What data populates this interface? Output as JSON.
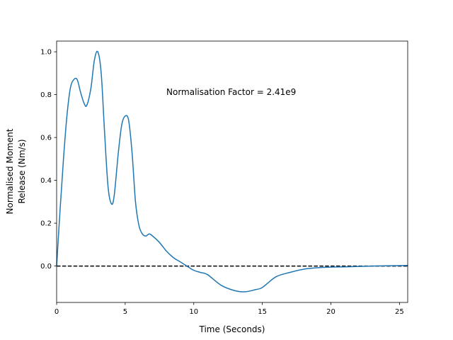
{
  "chart_data": {
    "type": "line",
    "title": "",
    "xlabel": "Time (Seconds)",
    "ylabel_lines": [
      "Normalised Moment",
      "Release (Nm/s)"
    ],
    "annotation": "Normalisation Factor = 2.41e9",
    "xlim": [
      0,
      25.6
    ],
    "ylim": [
      -0.17,
      1.05
    ],
    "x_ticks": [
      0,
      5,
      10,
      15,
      20,
      25
    ],
    "y_ticks": [
      0.0,
      0.2,
      0.4,
      0.6,
      0.8,
      1.0
    ],
    "x_tick_labels": [
      "0",
      "5",
      "10",
      "15",
      "20",
      "25"
    ],
    "y_tick_labels": [
      "0.0",
      "0.2",
      "0.4",
      "0.6",
      "0.8",
      "1.0"
    ],
    "grid": false,
    "line_color": "#1f77b4",
    "zero_line": {
      "y": 0,
      "style": "dashed",
      "color": "#000000"
    },
    "series": [
      {
        "x": [
          0,
          0.25,
          0.5,
          0.75,
          1.0,
          1.25,
          1.5,
          1.75,
          2.0,
          2.2,
          2.5,
          2.75,
          3.0,
          3.25,
          3.5,
          3.75,
          4.0,
          4.2,
          4.5,
          4.75,
          5.0,
          5.25,
          5.5,
          5.75,
          6.0,
          6.25,
          6.5,
          6.75,
          7.0,
          7.5,
          8.0,
          8.5,
          9.0,
          9.5,
          10.0,
          10.5,
          11.0,
          12.0,
          13.0,
          13.75,
          14.5,
          15.0,
          16.0,
          17.0,
          18.0,
          19.0,
          20.0,
          21.0,
          22.0,
          23.0,
          24.0,
          25.0,
          25.6
        ],
        "y": [
          0.0,
          0.26,
          0.5,
          0.7,
          0.83,
          0.87,
          0.87,
          0.81,
          0.76,
          0.75,
          0.83,
          0.96,
          1.0,
          0.9,
          0.62,
          0.37,
          0.29,
          0.33,
          0.53,
          0.66,
          0.7,
          0.68,
          0.53,
          0.3,
          0.19,
          0.15,
          0.14,
          0.15,
          0.14,
          0.11,
          0.07,
          0.04,
          0.02,
          0.0,
          -0.02,
          -0.03,
          -0.04,
          -0.09,
          -0.115,
          -0.12,
          -0.11,
          -0.1,
          -0.05,
          -0.03,
          -0.015,
          -0.008,
          -0.005,
          -0.004,
          -0.002,
          0.0,
          0.001,
          0.002,
          0.003
        ]
      }
    ]
  }
}
